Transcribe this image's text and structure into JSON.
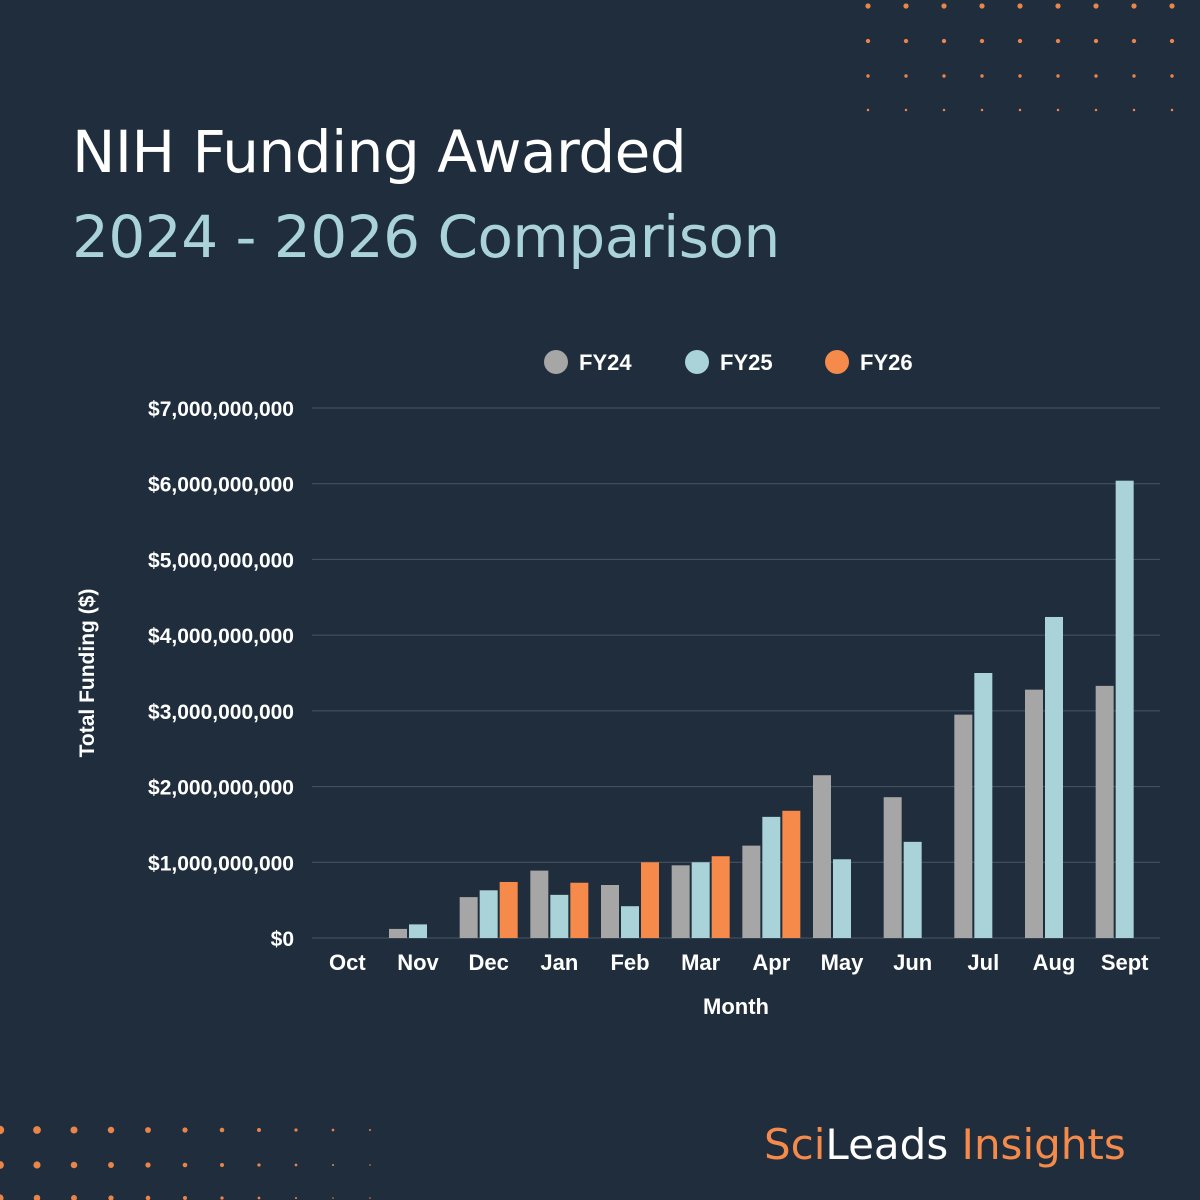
{
  "title": "NIH Funding Awarded",
  "subtitle": "2024 - 2026 Comparison",
  "brand": {
    "part1": "Sci",
    "part2": "Leads",
    "part3": " Insights"
  },
  "colors": {
    "background": "#1f2d3c",
    "FY24": "#a6a6a6",
    "FY25": "#a9d3d9",
    "FY26": "#f58a4b",
    "grid": "#4a5663",
    "text": "#ffffff",
    "accent": "#f58a4b"
  },
  "chart_data": {
    "type": "bar",
    "xlabel": "Month",
    "ylabel": "Total Funding ($)",
    "ylim": [
      0,
      7000000000
    ],
    "yticks": [
      {
        "value": 0,
        "label": "$0"
      },
      {
        "value": 1000000000,
        "label": "$1,000,000,000"
      },
      {
        "value": 2000000000,
        "label": "$2,000,000,000"
      },
      {
        "value": 3000000000,
        "label": "$3,000,000,000"
      },
      {
        "value": 4000000000,
        "label": "$4,000,000,000"
      },
      {
        "value": 5000000000,
        "label": "$5,000,000,000"
      },
      {
        "value": 6000000000,
        "label": "$6,000,000,000"
      },
      {
        "value": 7000000000,
        "label": "$7,000,000,000"
      }
    ],
    "grid": true,
    "legend_position": "top",
    "categories": [
      "Oct",
      "Nov",
      "Dec",
      "Jan",
      "Feb",
      "Mar",
      "Apr",
      "May",
      "Jun",
      "Jul",
      "Aug",
      "Sept"
    ],
    "series": [
      {
        "name": "FY24",
        "color": "#a6a6a6",
        "values": [
          0,
          120000000,
          540000000,
          890000000,
          700000000,
          960000000,
          1220000000,
          2150000000,
          1860000000,
          2950000000,
          3280000000,
          3330000000
        ]
      },
      {
        "name": "FY25",
        "color": "#a9d3d9",
        "values": [
          0,
          180000000,
          630000000,
          570000000,
          420000000,
          1000000000,
          1600000000,
          1040000000,
          1270000000,
          3500000000,
          4240000000,
          6040000000
        ]
      },
      {
        "name": "FY26",
        "color": "#f58a4b",
        "values": [
          0,
          null,
          740000000,
          730000000,
          1000000000,
          1080000000,
          1680000000,
          null,
          null,
          null,
          null,
          null
        ]
      }
    ]
  }
}
